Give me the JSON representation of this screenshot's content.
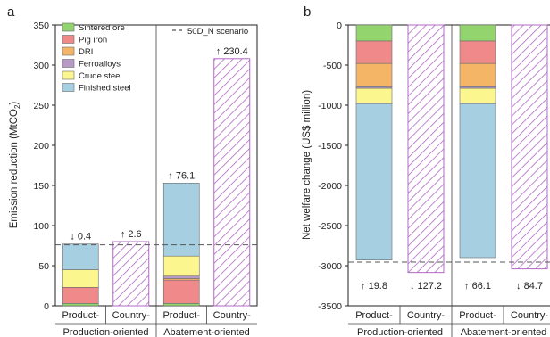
{
  "colors": {
    "sintered_ore": "#93d46e",
    "pig_iron": "#f08a8a",
    "dri": "#f5b567",
    "ferroalloys": "#b79ac8",
    "crude_steel": "#fbf68e",
    "finished_steel": "#a6cfe2",
    "hatch": "#b169c4",
    "axis": "#222222",
    "scenario_line": "#555555"
  },
  "chart_data": [
    {
      "panel": "a",
      "type": "bar",
      "stacked": true,
      "ylabel": "Emission reduction (MtCO2)",
      "ylabel_main": "Emission reduction (MtCO",
      "ylabel_sub": "2",
      "ylabel_close": ")",
      "ylim": [
        0,
        350
      ],
      "yticks": [
        0,
        50,
        100,
        150,
        200,
        250,
        300,
        350
      ],
      "categories": [
        "Product-",
        "Country-",
        "Product-",
        "Country-"
      ],
      "groups": [
        "Production-oriented",
        "Abatement-oriented"
      ],
      "series": [
        {
          "name": "Sintered ore",
          "color_key": "sintered_ore",
          "values": [
            3,
            0,
            3,
            0
          ]
        },
        {
          "name": "Pig iron",
          "color_key": "pig_iron",
          "values": [
            20,
            0,
            29,
            0
          ]
        },
        {
          "name": "DRI",
          "color_key": "dri",
          "values": [
            0,
            0,
            2,
            0
          ]
        },
        {
          "name": "Ferroalloys",
          "color_key": "ferroalloys",
          "values": [
            0,
            0,
            3,
            0
          ]
        },
        {
          "name": "Crude steel",
          "color_key": "crude_steel",
          "values": [
            22,
            0,
            25,
            0
          ]
        },
        {
          "name": "Finished steel",
          "color_key": "finished_steel",
          "values": [
            32,
            0,
            91,
            0
          ]
        }
      ],
      "hatched_totals": [
        null,
        80,
        null,
        308
      ],
      "scenario_line": {
        "name": "50D_N scenario",
        "value": 76
      },
      "annotations": [
        "↓ 0.4",
        "↑ 2.6",
        "↑ 76.1",
        "↑ 230.4"
      ],
      "legend_position": "top-left"
    },
    {
      "panel": "b",
      "type": "bar",
      "stacked": true,
      "ylabel": "Net welfare change (US$ million)",
      "ylim": [
        -3500,
        0
      ],
      "yticks": [
        0,
        -500,
        -1000,
        -1500,
        -2000,
        -2500,
        -3000,
        -3500
      ],
      "categories": [
        "Product-",
        "Country-",
        "Product-",
        "Country-"
      ],
      "groups": [
        "Production-oriented",
        "Abatement-oriented"
      ],
      "series": [
        {
          "name": "Sintered ore",
          "color_key": "sintered_ore",
          "values": [
            -200,
            0,
            -200,
            0
          ]
        },
        {
          "name": "Pig iron",
          "color_key": "pig_iron",
          "values": [
            -280,
            0,
            -280,
            0
          ]
        },
        {
          "name": "DRI",
          "color_key": "dri",
          "values": [
            -290,
            0,
            -290,
            0
          ]
        },
        {
          "name": "Ferroalloys",
          "color_key": "ferroalloys",
          "values": [
            -20,
            0,
            -20,
            0
          ]
        },
        {
          "name": "Crude steel",
          "color_key": "crude_steel",
          "values": [
            -190,
            0,
            -190,
            0
          ]
        },
        {
          "name": "Finished steel",
          "color_key": "finished_steel",
          "values": [
            -1950,
            0,
            -1920,
            0
          ]
        }
      ],
      "hatched_totals": [
        null,
        -3085,
        null,
        -3040
      ],
      "scenario_line": {
        "name": "50D_N scenario",
        "value": -2955
      },
      "annotations": [
        "↑ 19.8",
        "↓ 127.2",
        "↑ 66.1",
        "↓ 84.7"
      ]
    }
  ]
}
